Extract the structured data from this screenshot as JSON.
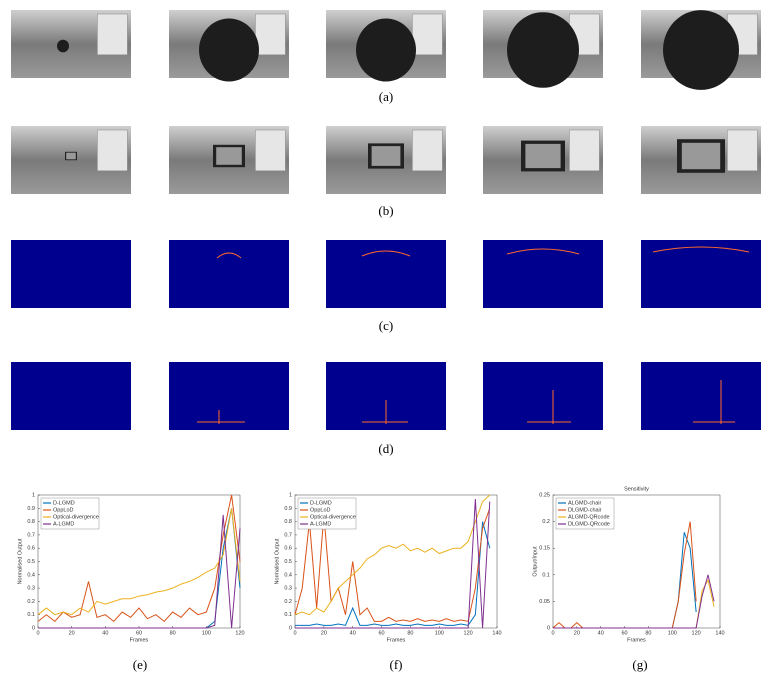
{
  "panel_labels": [
    "(a)",
    "(b)",
    "(c)",
    "(d)",
    "(e)",
    "(f)",
    "(g)"
  ],
  "chart_data": [
    {
      "type": "line",
      "xlabel": "Frames",
      "ylabel": "Normalised Output",
      "x": [
        0,
        5,
        10,
        15,
        20,
        25,
        30,
        35,
        40,
        45,
        50,
        55,
        60,
        65,
        70,
        75,
        80,
        85,
        90,
        95,
        100,
        105,
        110,
        115,
        120
      ],
      "xlim": [
        0,
        120
      ],
      "xticks": [
        0,
        20,
        40,
        60,
        80,
        100,
        120
      ],
      "ylim": [
        0,
        1
      ],
      "yticks": [
        0,
        0.1,
        0.2,
        0.3,
        0.4,
        0.5,
        0.6,
        0.7,
        0.8,
        0.9,
        1
      ],
      "legend": "upper-left",
      "series": [
        {
          "name": "D-LGMD",
          "color": "#0072BD",
          "values": [
            0,
            0,
            0,
            0,
            0,
            0,
            0,
            0,
            0,
            0,
            0,
            0,
            0,
            0,
            0,
            0,
            0,
            0,
            0,
            0,
            0,
            0.05,
            0.6,
            0.9,
            0.3
          ]
        },
        {
          "name": "OppLoD",
          "color": "#D95319",
          "values": [
            0.05,
            0.1,
            0.05,
            0.12,
            0.08,
            0.1,
            0.35,
            0.08,
            0.1,
            0.05,
            0.12,
            0.08,
            0.15,
            0.07,
            0.1,
            0.05,
            0.12,
            0.08,
            0.15,
            0.1,
            0.12,
            0.3,
            0.7,
            1,
            0.5
          ]
        },
        {
          "name": "Optical-divergence",
          "color": "#EDB120",
          "values": [
            0.1,
            0.15,
            0.1,
            0.12,
            0.1,
            0.15,
            0.12,
            0.2,
            0.18,
            0.2,
            0.22,
            0.22,
            0.24,
            0.25,
            0.27,
            0.28,
            0.3,
            0.33,
            0.35,
            0.38,
            0.42,
            0.45,
            0.55,
            0.9,
            0.35
          ]
        },
        {
          "name": "A-LGMD",
          "color": "#7E2F8E",
          "values": [
            0,
            0,
            0,
            0,
            0,
            0,
            0,
            0,
            0,
            0,
            0,
            0,
            0,
            0,
            0,
            0,
            0,
            0,
            0,
            0,
            0,
            0.02,
            0.85,
            0,
            0.75
          ]
        }
      ]
    },
    {
      "type": "line",
      "xlabel": "Frames",
      "ylabel": "Normalised Output",
      "x": [
        0,
        5,
        10,
        15,
        20,
        25,
        30,
        35,
        40,
        45,
        50,
        55,
        60,
        65,
        70,
        75,
        80,
        85,
        90,
        95,
        100,
        105,
        110,
        115,
        120,
        125,
        130,
        135
      ],
      "xlim": [
        0,
        140
      ],
      "xticks": [
        0,
        20,
        40,
        60,
        80,
        100,
        120,
        140
      ],
      "ylim": [
        0,
        1
      ],
      "yticks": [
        0,
        0.1,
        0.2,
        0.3,
        0.4,
        0.5,
        0.6,
        0.7,
        0.8,
        0.9,
        1
      ],
      "legend": "upper-left",
      "series": [
        {
          "name": "D-LGMD",
          "color": "#0072BD",
          "values": [
            0.02,
            0.02,
            0.02,
            0.03,
            0.02,
            0.02,
            0.03,
            0.02,
            0.15,
            0.02,
            0.02,
            0.03,
            0.02,
            0.02,
            0.03,
            0.02,
            0.02,
            0.03,
            0.02,
            0.02,
            0.03,
            0.02,
            0.02,
            0.03,
            0.02,
            0.1,
            0.8,
            0.6
          ]
        },
        {
          "name": "OppLoD",
          "color": "#D95319",
          "values": [
            0.1,
            0.3,
            0.8,
            0.15,
            0.85,
            0.2,
            0.3,
            0.1,
            0.5,
            0.1,
            0.15,
            0.05,
            0.05,
            0.08,
            0.05,
            0.06,
            0.05,
            0.07,
            0.05,
            0.06,
            0.05,
            0.07,
            0.05,
            0.06,
            0.05,
            0.3,
            0.75,
            0.9
          ]
        },
        {
          "name": "Optical-divergence",
          "color": "#EDB120",
          "values": [
            0.1,
            0.12,
            0.1,
            0.15,
            0.12,
            0.2,
            0.3,
            0.35,
            0.4,
            0.45,
            0.52,
            0.55,
            0.6,
            0.62,
            0.6,
            0.63,
            0.58,
            0.6,
            0.57,
            0.6,
            0.56,
            0.58,
            0.6,
            0.6,
            0.65,
            0.8,
            0.95,
            1
          ]
        },
        {
          "name": "A-LGMD",
          "color": "#7E2F8E",
          "values": [
            0,
            0,
            0,
            0,
            0,
            0,
            0,
            0,
            0,
            0,
            0,
            0,
            0,
            0,
            0,
            0,
            0,
            0,
            0,
            0,
            0,
            0,
            0,
            0,
            0,
            0.97,
            0,
            0.95
          ]
        }
      ]
    },
    {
      "type": "line",
      "title": "Sensitivity",
      "xlabel": "Frames",
      "ylabel": "Output/Input",
      "x": [
        0,
        5,
        10,
        15,
        20,
        25,
        30,
        35,
        40,
        45,
        50,
        55,
        60,
        65,
        70,
        75,
        80,
        85,
        90,
        95,
        100,
        105,
        110,
        115,
        120,
        125,
        130,
        135
      ],
      "xlim": [
        0,
        140
      ],
      "xticks": [
        0,
        20,
        40,
        60,
        80,
        100,
        120,
        140
      ],
      "ylim": [
        0,
        0.25
      ],
      "yticks": [
        0,
        0.05,
        0.1,
        0.15,
        0.2,
        0.25
      ],
      "legend": "upper-left",
      "series": [
        {
          "name": "ALGMD-chair",
          "color": "#0072BD",
          "values": [
            0,
            0,
            0,
            0,
            0,
            0,
            0,
            0,
            0,
            0,
            0,
            0,
            0,
            0,
            0,
            0,
            0,
            0,
            0,
            0,
            0,
            0.05,
            0.18,
            0.15,
            0.03,
            null,
            null,
            null
          ]
        },
        {
          "name": "DLGMD-chair",
          "color": "#D95319",
          "values": [
            0,
            0.01,
            0,
            0,
            0.01,
            0,
            0,
            0,
            0,
            0,
            0,
            0,
            0,
            0,
            0,
            0,
            0,
            0,
            0,
            0,
            0,
            0.05,
            0.14,
            0.2,
            0.05,
            null,
            null,
            null
          ]
        },
        {
          "name": "ALGMD-QRcode",
          "color": "#EDB120",
          "values": [
            0,
            0,
            0,
            0,
            0,
            0,
            0,
            0,
            0,
            0,
            0,
            0,
            0,
            0,
            0,
            0,
            0,
            0,
            0,
            0,
            0,
            0,
            0,
            0,
            0,
            0.07,
            0.09,
            0.04
          ]
        },
        {
          "name": "DLGMD-QRcode",
          "color": "#7E2F8E",
          "values": [
            0,
            0,
            0,
            0,
            0,
            0,
            0,
            0,
            0,
            0,
            0,
            0,
            0,
            0,
            0,
            0,
            0,
            0,
            0,
            0,
            0,
            0,
            0,
            0,
            0,
            0.06,
            0.1,
            0.05
          ]
        }
      ]
    }
  ]
}
